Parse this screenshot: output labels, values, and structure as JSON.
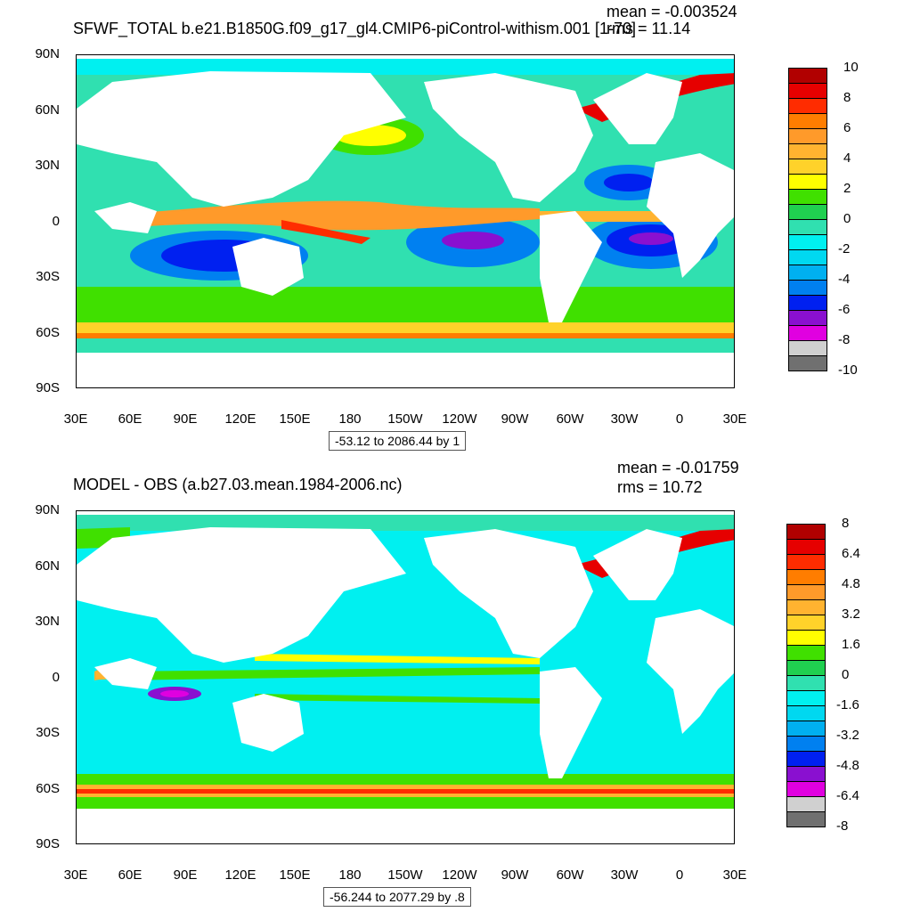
{
  "chart_data": [
    {
      "type": "heatmap",
      "title": "SFWF_TOTAL b.e21.B1850G.f09_g17_gl4.CMIP6-piControl-withism.001 [1-70]",
      "stats": {
        "mean": "mean = -0.003524",
        "rms": "rms = 11.14"
      },
      "range_label": "-53.12 to 2086.44 by 1",
      "y_ticks": [
        "90N",
        "60N",
        "30N",
        "0",
        "30S",
        "60S",
        "90S"
      ],
      "x_ticks": [
        "30E",
        "60E",
        "90E",
        "120E",
        "150E",
        "180",
        "150W",
        "120W",
        "90W",
        "60W",
        "30W",
        "0",
        "30E"
      ],
      "colorbar": {
        "labels": [
          "10",
          "8",
          "6",
          "4",
          "2",
          "0",
          "-2",
          "-4",
          "-6",
          "-8",
          "-10"
        ],
        "colors": [
          "#b10000",
          "#e60000",
          "#ff2c00",
          "#ff7d00",
          "#ff9a2a",
          "#ffb330",
          "#ffd22a",
          "#ffff00",
          "#40e000",
          "#20d050",
          "#30e0b0",
          "#00f0f0",
          "#00d8f0",
          "#00b0f0",
          "#0080f0",
          "#0020f0",
          "#8a10d0",
          "#e000e0",
          "#d0d0d0",
          "#707070"
        ]
      },
      "lat_range": [
        -90,
        90
      ],
      "lon_range": [
        "30E",
        "30E"
      ]
    },
    {
      "type": "heatmap",
      "title": "MODEL - OBS (a.b27.03.mean.1984-2006.nc)",
      "stats": {
        "mean": "mean = -0.01759",
        "rms": "rms = 10.72"
      },
      "range_label": "-56.244 to 2077.29 by .8",
      "y_ticks": [
        "90N",
        "60N",
        "30N",
        "0",
        "30S",
        "60S",
        "90S"
      ],
      "x_ticks": [
        "30E",
        "60E",
        "90E",
        "120E",
        "150E",
        "180",
        "150W",
        "120W",
        "90W",
        "60W",
        "30W",
        "0",
        "30E"
      ],
      "colorbar": {
        "labels": [
          "8",
          "6.4",
          "4.8",
          "3.2",
          "1.6",
          "0",
          "-1.6",
          "-3.2",
          "-4.8",
          "-6.4",
          "-8"
        ],
        "colors": [
          "#b10000",
          "#e60000",
          "#ff2c00",
          "#ff7d00",
          "#ff9a2a",
          "#ffb330",
          "#ffd22a",
          "#ffff00",
          "#40e000",
          "#20d050",
          "#30e0b0",
          "#00f0f0",
          "#00d8f0",
          "#00b0f0",
          "#0080f0",
          "#0020f0",
          "#8a10d0",
          "#e000e0",
          "#d0d0d0",
          "#707070"
        ]
      },
      "lat_range": [
        -90,
        90
      ],
      "lon_range": [
        "30E",
        "30E"
      ]
    }
  ]
}
